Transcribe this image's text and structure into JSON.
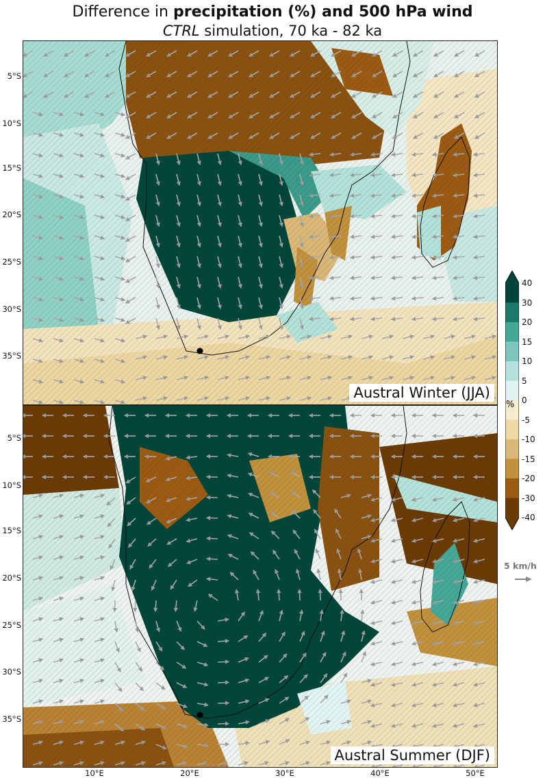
{
  "title": {
    "prefix": "Difference in ",
    "bold": "precipitation (%) and 500 hPa wind"
  },
  "subtitle": {
    "italic": "CTRL",
    "rest": " simulation, 70 ka - 82 ka"
  },
  "panels": [
    {
      "label": "Austral Winter (JJA)"
    },
    {
      "label": "Austral Summer (DJF)"
    }
  ],
  "lat_labels": [
    "5°S",
    "10°S",
    "15°S",
    "20°S",
    "25°S",
    "30°S",
    "35°S"
  ],
  "lon_labels": [
    "10°E",
    "20°E",
    "30°E",
    "40°E",
    "50°E"
  ],
  "colorbar": {
    "unit": "%",
    "ticks": [
      "40",
      "30",
      "20",
      "15",
      "10",
      "5",
      "0",
      "-5",
      "-10",
      "-15",
      "-20",
      "-30",
      "-40"
    ],
    "colors": [
      "#01463b",
      "#1b7a6c",
      "#45a896",
      "#7cc7b9",
      "#b2e2d9",
      "#e2f4f1",
      "#f6ebcc",
      "#eed9a5",
      "#d9b878",
      "#c2913d",
      "#9c5b13",
      "#6b3b06"
    ]
  },
  "wind_reference": "5 km/h",
  "marker": "site location dot"
}
